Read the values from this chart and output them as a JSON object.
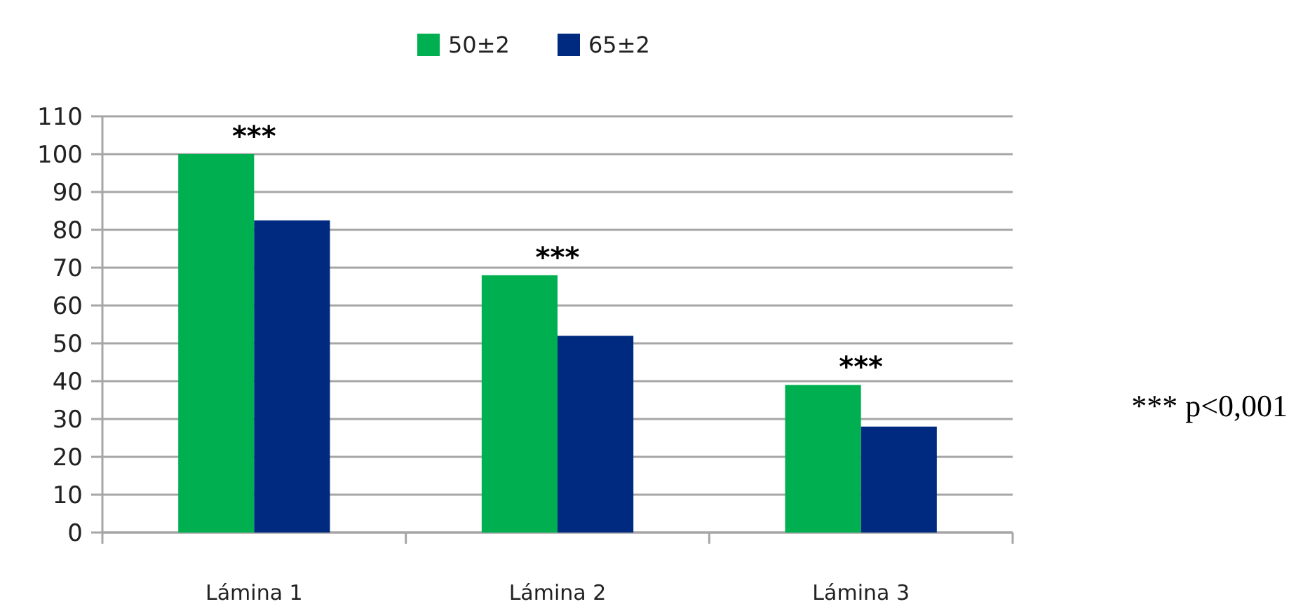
{
  "chart_data": {
    "type": "bar",
    "categories": [
      "Lámina 1",
      "Lámina 2",
      "Lámina 3"
    ],
    "series": [
      {
        "name": "50±2",
        "color": "#00b050",
        "values": [
          100,
          68,
          39
        ]
      },
      {
        "name": "65±2",
        "color": "#002a7f",
        "values": [
          82.5,
          52,
          28
        ]
      }
    ],
    "ylim": [
      0,
      110
    ],
    "yticks": [
      0,
      10,
      20,
      30,
      40,
      50,
      60,
      70,
      80,
      90,
      100,
      110
    ],
    "grid": "y",
    "legend": "top",
    "annotations": [
      {
        "text": "***",
        "x": "Lámina 1",
        "y": 100
      },
      {
        "text": "***",
        "x": "Lámina 2",
        "y": 68
      },
      {
        "text": "***",
        "x": "Lámina 3",
        "y": 39
      },
      "*** p<0,001"
    ]
  }
}
